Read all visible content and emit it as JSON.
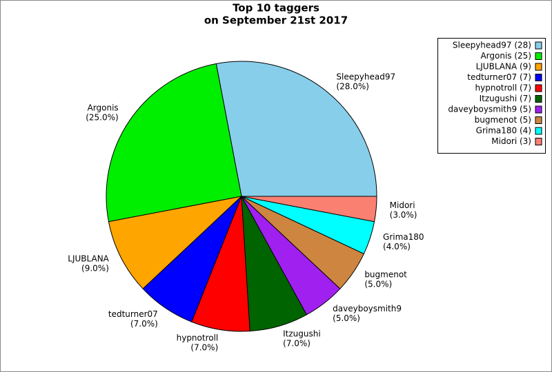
{
  "chart_data": {
    "type": "pie",
    "title": "Top 10 taggers",
    "subtitle": "on September 21st 2017",
    "categories": [
      "Sleepyhead97",
      "Argonis",
      "LJUBLANA",
      "tedturner07",
      "hypnotroll",
      "Itzugushi",
      "daveyboysmith9",
      "bugmenot",
      "Grima180",
      "Midori"
    ],
    "values": [
      28,
      25,
      9,
      7,
      7,
      7,
      5,
      5,
      4,
      3
    ],
    "value_labels": [
      "(28.0%)",
      "(25.0%)",
      "(9.0%)",
      "(7.0%)",
      "(7.0%)",
      "(7.0%)",
      "(5.0%)",
      "(5.0%)",
      "(4.0%)",
      "(3.0%)"
    ],
    "legend_labels": [
      "Sleepyhead97 (28)",
      "Argonis (25)",
      "LJUBLANA (9)",
      "tedturner07 (7)",
      "hypnotroll (7)",
      "Itzugushi (7)",
      "daveyboysmith9 (5)",
      "bugmenot (5)",
      "Grima180 (4)",
      "Midori (3)"
    ],
    "colors": [
      "#87ceeb",
      "#00ee00",
      "#ffa500",
      "#0000ff",
      "#ff0000",
      "#006400",
      "#a020f0",
      "#cd853f",
      "#00ffff",
      "#fa8072"
    ],
    "legend": "upper right"
  }
}
